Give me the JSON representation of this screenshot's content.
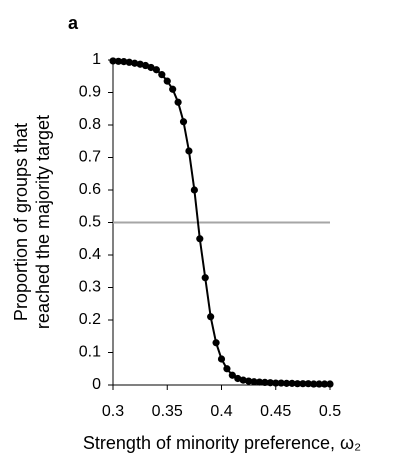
{
  "chart_data": {
    "type": "line",
    "panel_label": "a",
    "ylabel": [
      "Proportion of groups that",
      "reached the majority target"
    ],
    "xlabel": "Strength of minority preference, ω₂",
    "x": [
      0.3,
      0.305,
      0.31,
      0.315,
      0.32,
      0.325,
      0.33,
      0.335,
      0.34,
      0.345,
      0.35,
      0.355,
      0.36,
      0.365,
      0.37,
      0.375,
      0.38,
      0.385,
      0.39,
      0.395,
      0.4,
      0.405,
      0.41,
      0.415,
      0.42,
      0.425,
      0.43,
      0.435,
      0.44,
      0.445,
      0.45,
      0.455,
      0.46,
      0.465,
      0.47,
      0.475,
      0.48,
      0.485,
      0.49,
      0.495,
      0.5
    ],
    "series": [
      {
        "name": "Proportion",
        "color": "#000000",
        "values": [
          0.997,
          0.996,
          0.995,
          0.993,
          0.99,
          0.987,
          0.983,
          0.977,
          0.97,
          0.955,
          0.935,
          0.91,
          0.87,
          0.81,
          0.72,
          0.6,
          0.45,
          0.33,
          0.21,
          0.13,
          0.08,
          0.05,
          0.03,
          0.02,
          0.015,
          0.012,
          0.01,
          0.009,
          0.008,
          0.007,
          0.006,
          0.006,
          0.005,
          0.005,
          0.004,
          0.004,
          0.004,
          0.003,
          0.003,
          0.003,
          0.003
        ]
      }
    ],
    "reference_line": {
      "value": 0.5,
      "color": "#a6a6a6"
    },
    "xlim": [
      0.3,
      0.5
    ],
    "xticks": [
      0.3,
      0.35,
      0.4,
      0.45,
      0.5
    ],
    "ylim": [
      0,
      1
    ],
    "yticks": [
      0,
      0.1,
      0.2,
      0.3,
      0.4,
      0.5,
      0.6,
      0.7,
      0.8,
      0.9,
      1
    ]
  }
}
